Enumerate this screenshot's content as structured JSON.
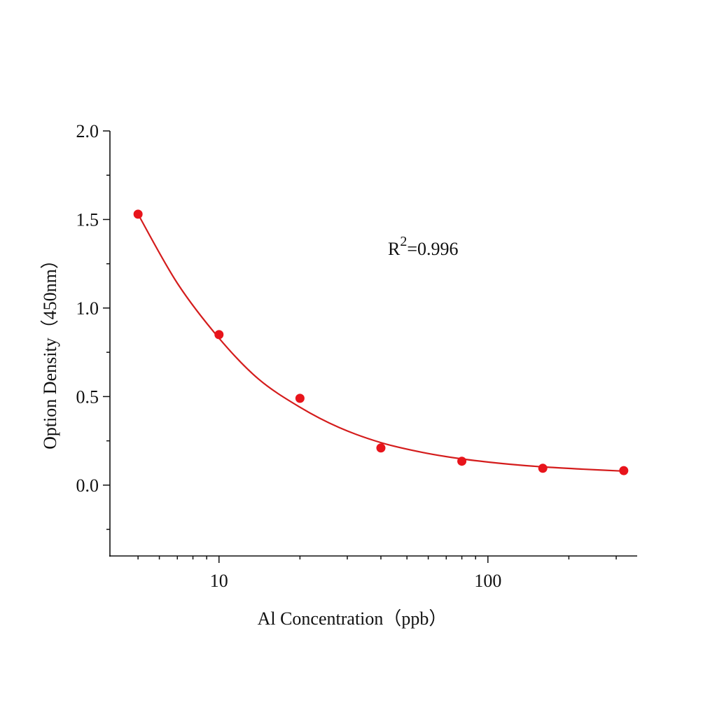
{
  "chart_data": {
    "type": "scatter",
    "xlabel": "Al Concentration（ppb）",
    "ylabel": "Option Density（450nm）",
    "annotation": [
      "R",
      "2",
      "=0.996"
    ],
    "xscale": "log",
    "xlim": [
      3.93,
      359
    ],
    "xticks": [
      10,
      100
    ],
    "xminorticks": [
      5,
      6,
      7,
      8,
      9,
      20,
      30,
      40,
      50,
      60,
      70,
      80,
      90,
      200,
      300
    ],
    "ylim": [
      -0.4,
      2.0
    ],
    "yticks": [
      {
        "value": 0,
        "label": "0.0"
      },
      0.5,
      {
        "value": 1,
        "label": "1.0"
      },
      1.5,
      {
        "value": 2,
        "label": "2.0"
      }
    ],
    "yminorticks": [
      -0.25,
      0.25,
      0.75,
      1.25,
      1.75
    ],
    "points": {
      "color": "#e8141b",
      "x": [
        5,
        10,
        20,
        40,
        80,
        160,
        320
      ],
      "values": [
        1.53,
        0.85,
        0.49,
        0.21,
        0.135,
        0.095,
        0.082
      ]
    },
    "fit": {
      "color": "#d41c1c",
      "x": [
        5,
        7,
        10,
        14,
        20,
        28,
        40,
        57,
        80,
        113,
        160,
        226,
        320
      ],
      "values": [
        1.53,
        1.14,
        0.83,
        0.6,
        0.44,
        0.325,
        0.24,
        0.185,
        0.148,
        0.122,
        0.103,
        0.09,
        0.079
      ]
    }
  }
}
